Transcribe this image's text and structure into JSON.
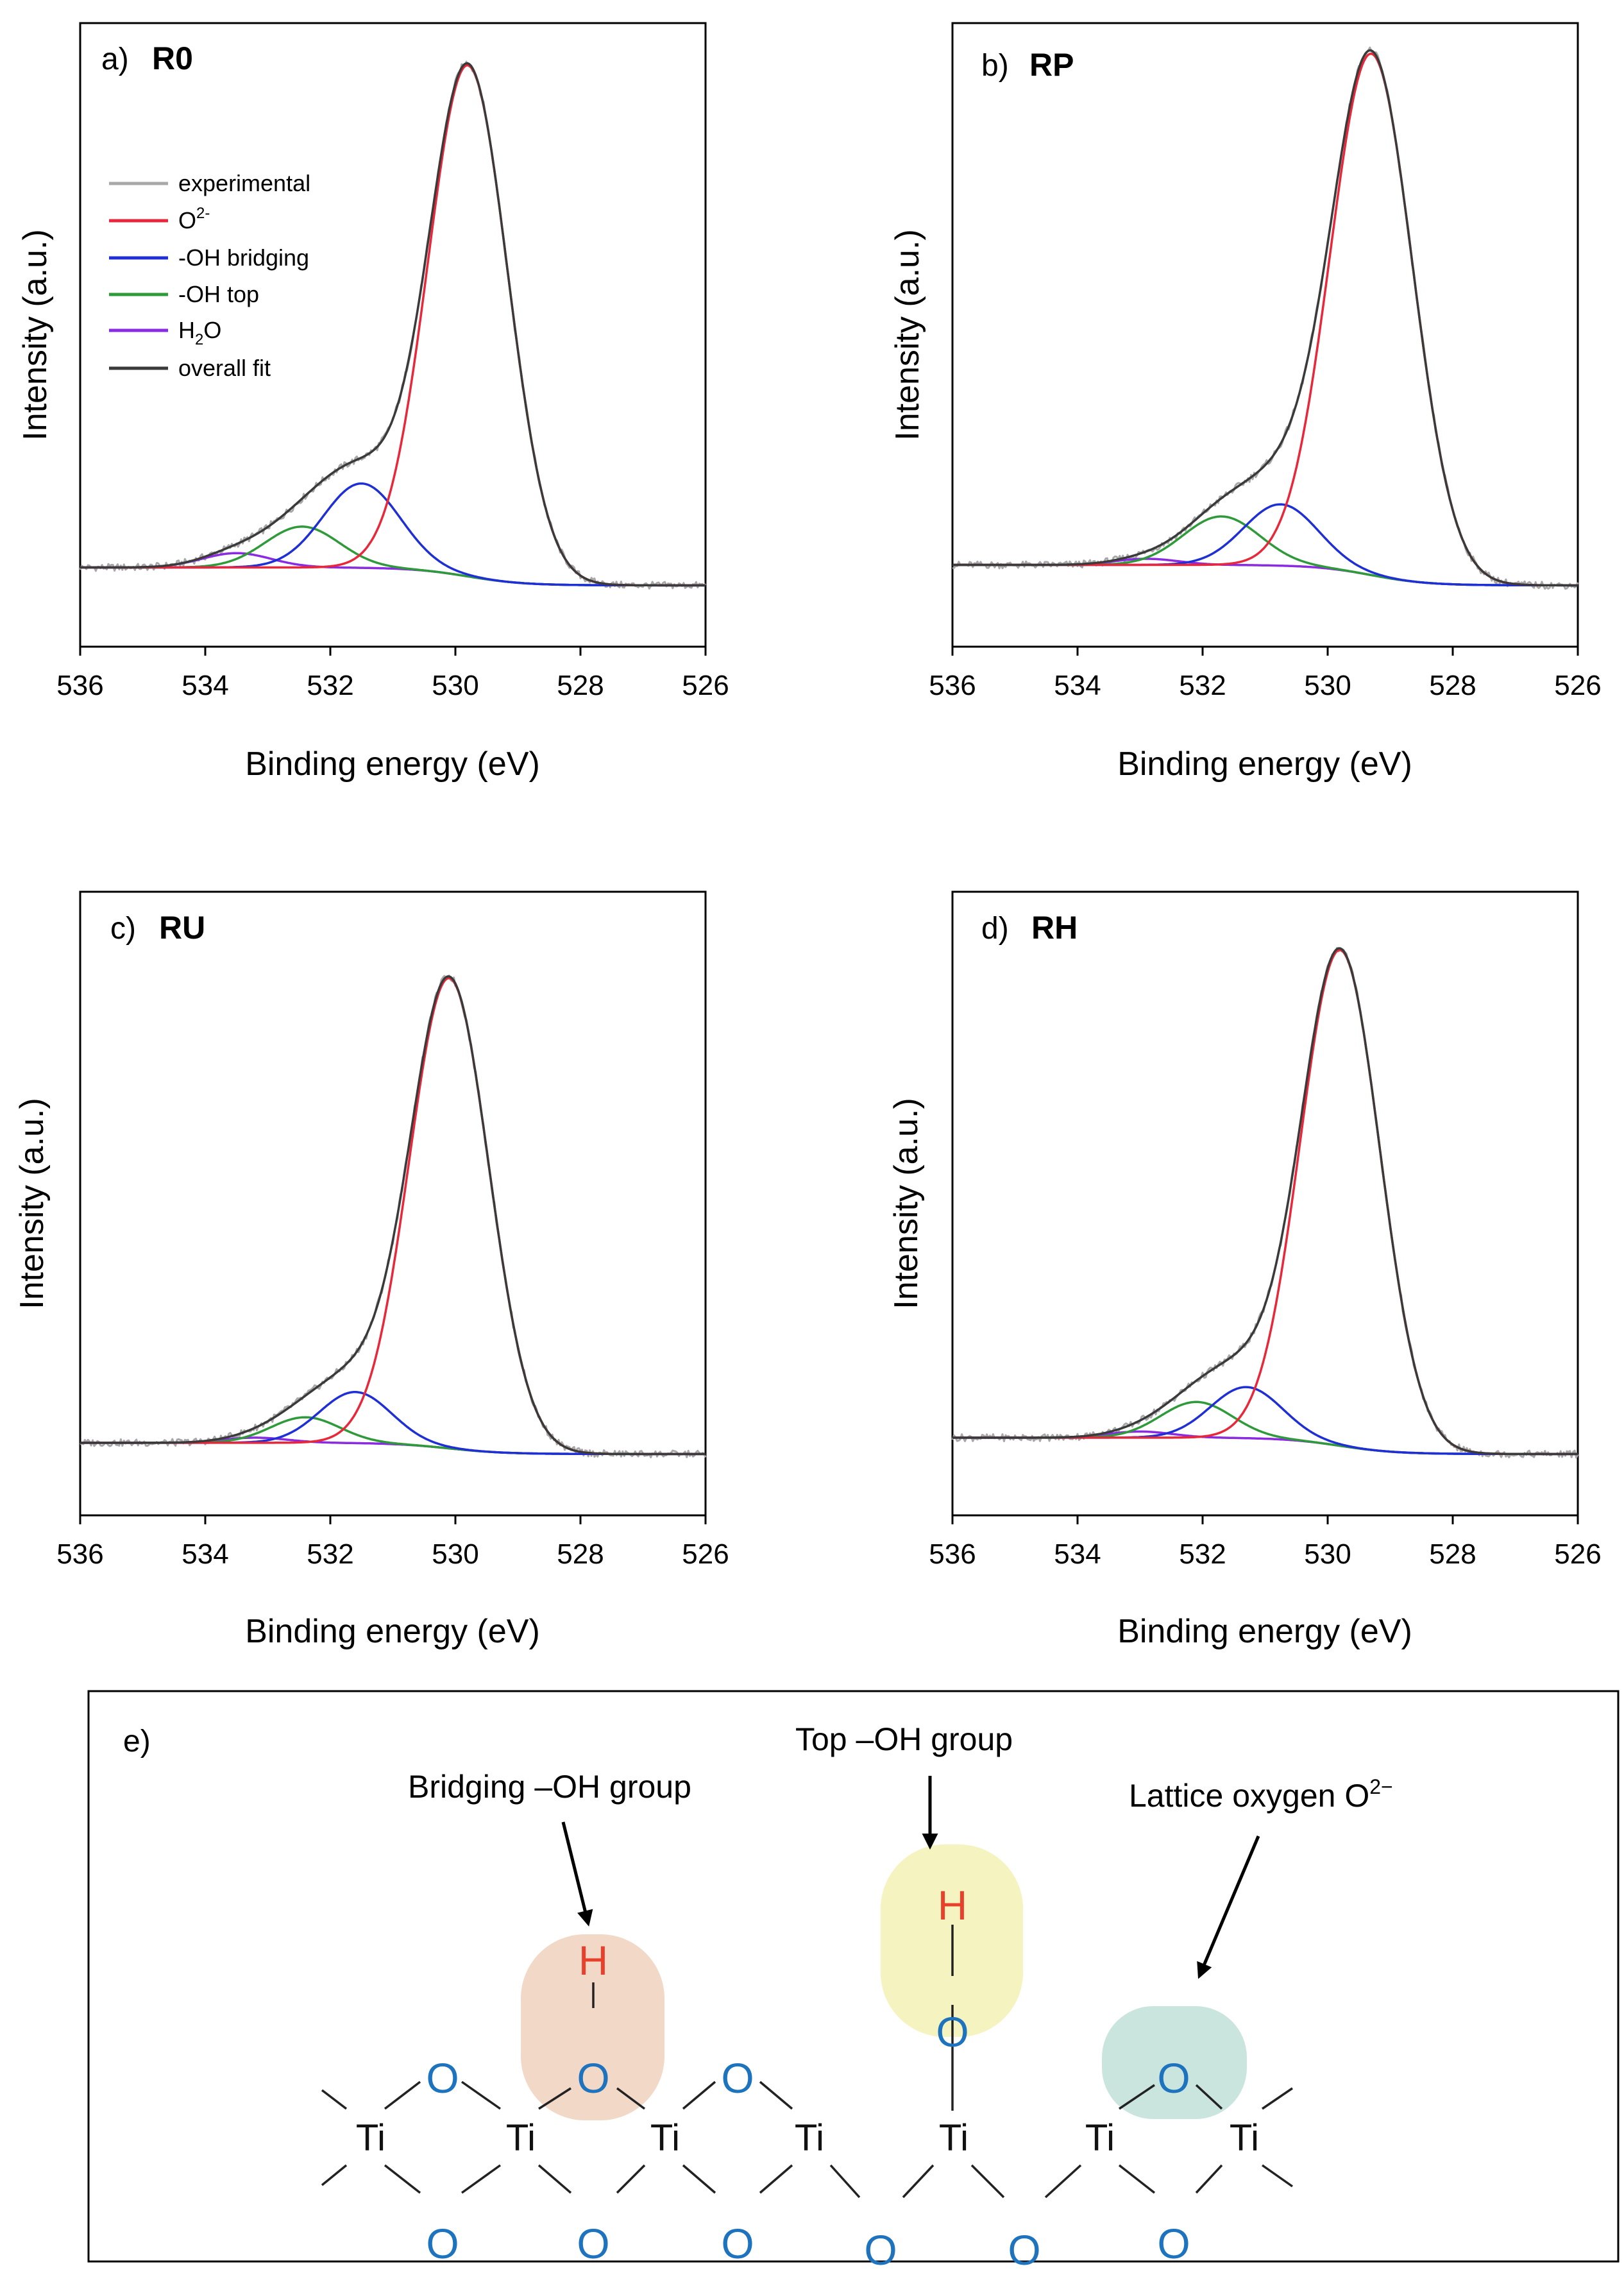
{
  "colors": {
    "experimental": "#a8a8a8",
    "o2": "#e8283a",
    "oh_bridging": "#1f2fd6",
    "oh_top": "#2e9a3a",
    "h2o": "#8a2be2",
    "overall_fit": "#3a3a3a",
    "atom_o": "#1e73be",
    "atom_h": "#e8402a",
    "atom_ti": "#111111",
    "hl_bridging": "#f2d8c6",
    "hl_top": "#f5f3bf",
    "hl_lattice": "#c9e5dd"
  },
  "legend": {
    "experimental": "experimental",
    "o2_base": "O",
    "o2_sup": "2-",
    "oh_bridging": "-OH bridging",
    "oh_top": "-OH top",
    "h2o_a": "H",
    "h2o_sub": "2",
    "h2o_b": "O",
    "overall_fit": "overall fit"
  },
  "chart_data": [
    {
      "type": "line",
      "panel_letter": "a)",
      "title": "R0",
      "xlabel": "Binding energy (eV)",
      "ylabel": "Intensity (a.u.)",
      "xlim": [
        536,
        526
      ],
      "xticks": [
        536,
        534,
        532,
        530,
        528,
        526
      ],
      "ylim": [
        -0.12,
        1.1
      ],
      "baseline": {
        "left": 0.035,
        "right": 0.0
      },
      "peaks": [
        {
          "component": "O2-",
          "center": 529.8,
          "height": 1.0,
          "fwhm": 1.5
        },
        {
          "component": "-OH bridging",
          "center": 531.5,
          "height": 0.165,
          "fwhm": 1.45
        },
        {
          "component": "-OH top",
          "center": 532.45,
          "height": 0.08,
          "fwhm": 1.4
        },
        {
          "component": "H2O",
          "center": 533.5,
          "height": 0.028,
          "fwhm": 1.3
        }
      ]
    },
    {
      "type": "line",
      "panel_letter": "b)",
      "title": "RP",
      "xlabel": "Binding energy (eV)",
      "ylabel": "Intensity (a.u.)",
      "xlim": [
        536,
        526
      ],
      "xticks": [
        536,
        534,
        532,
        530,
        528,
        526
      ],
      "ylim": [
        -0.12,
        1.1
      ],
      "baseline": {
        "left": 0.04,
        "right": 0.0
      },
      "peaks": [
        {
          "component": "O2-",
          "center": 529.3,
          "height": 1.02,
          "fwhm": 1.55
        },
        {
          "component": "-OH bridging",
          "center": 530.75,
          "height": 0.12,
          "fwhm": 1.4
        },
        {
          "component": "-OH top",
          "center": 531.7,
          "height": 0.095,
          "fwhm": 1.45
        },
        {
          "component": "H2O",
          "center": 532.9,
          "height": 0.012,
          "fwhm": 1.2
        }
      ]
    },
    {
      "type": "line",
      "panel_letter": "c)",
      "title": "RU",
      "xlabel": "Binding energy (eV)",
      "ylabel": "Intensity (a.u.)",
      "xlim": [
        536,
        526
      ],
      "xticks": [
        536,
        534,
        532,
        530,
        528,
        526
      ],
      "ylim": [
        -0.12,
        1.1
      ],
      "baseline": {
        "left": 0.022,
        "right": 0.0
      },
      "peaks": [
        {
          "component": "O2-",
          "center": 530.1,
          "height": 0.92,
          "fwhm": 1.5
        },
        {
          "component": "-OH bridging",
          "center": 531.6,
          "height": 0.1,
          "fwhm": 1.35
        },
        {
          "component": "-OH top",
          "center": 532.4,
          "height": 0.05,
          "fwhm": 1.3
        },
        {
          "component": "H2O",
          "center": 533.2,
          "height": 0.01,
          "fwhm": 1.2
        }
      ]
    },
    {
      "type": "line",
      "panel_letter": "d)",
      "title": "RH",
      "xlabel": "Binding energy (eV)",
      "ylabel": "Intensity (a.u.)",
      "xlim": [
        536,
        526
      ],
      "xticks": [
        536,
        534,
        532,
        530,
        528,
        526
      ],
      "ylim": [
        -0.12,
        1.1
      ],
      "baseline": {
        "left": 0.032,
        "right": 0.0
      },
      "peaks": [
        {
          "component": "O2-",
          "center": 529.8,
          "height": 0.97,
          "fwhm": 1.5
        },
        {
          "component": "-OH bridging",
          "center": 531.3,
          "height": 0.1,
          "fwhm": 1.35
        },
        {
          "component": "-OH top",
          "center": 532.1,
          "height": 0.07,
          "fwhm": 1.35
        },
        {
          "component": "H2O",
          "center": 533.0,
          "height": 0.012,
          "fwhm": 1.2
        }
      ]
    }
  ],
  "schematic": {
    "panel_letter": "e)",
    "label_bridging": "Bridging –OH group",
    "label_top": "Top –OH group",
    "label_lattice_base": "Lattice oxygen O",
    "label_lattice_sup": "2−",
    "atom_ti": "Ti",
    "atom_o": "O",
    "atom_h": "H"
  }
}
